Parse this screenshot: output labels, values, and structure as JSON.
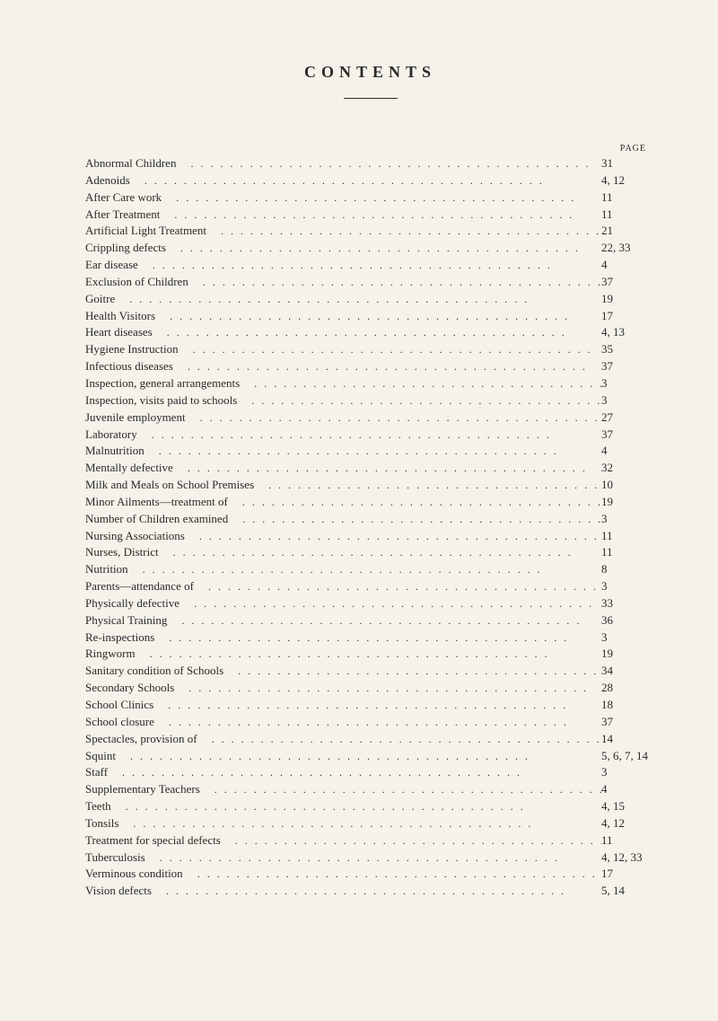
{
  "header": {
    "title": "CONTENTS",
    "page_label": "PAGE"
  },
  "entries": [
    {
      "label": "Abnormal Children",
      "page": "31"
    },
    {
      "label": "Adenoids",
      "page": "4, 12"
    },
    {
      "label": "After Care work",
      "page": "11"
    },
    {
      "label": "After Treatment",
      "page": "11"
    },
    {
      "label": "Artificial Light Treatment",
      "page": "21"
    },
    {
      "label": "Crippling defects",
      "page": "22, 33"
    },
    {
      "label": "Ear disease",
      "page": "4"
    },
    {
      "label": "Exclusion of Children",
      "page": "37"
    },
    {
      "label": "Goitre",
      "page": "19"
    },
    {
      "label": "Health Visitors",
      "page": "17"
    },
    {
      "label": "Heart diseases",
      "page": "4, 13"
    },
    {
      "label": "Hygiene Instruction",
      "page": "35"
    },
    {
      "label": "Infectious diseases",
      "page": "37"
    },
    {
      "label": "Inspection, general arrangements",
      "page": "3"
    },
    {
      "label": "Inspection, visits paid to schools",
      "page": "3"
    },
    {
      "label": "Juvenile employment",
      "page": "27"
    },
    {
      "label": "Laboratory",
      "page": "37"
    },
    {
      "label": "Malnutrition",
      "page": "4"
    },
    {
      "label": "Mentally defective",
      "page": "32"
    },
    {
      "label": "Milk and Meals on School Premises",
      "page": "10"
    },
    {
      "label": "Minor Ailments—treatment of",
      "page": "19"
    },
    {
      "label": "Number of Children examined",
      "page": "3"
    },
    {
      "label": "Nursing Associations",
      "page": "11"
    },
    {
      "label": "Nurses, District",
      "page": "11"
    },
    {
      "label": "Nutrition",
      "page": "8"
    },
    {
      "label": "Parents—attendance of",
      "page": "3"
    },
    {
      "label": "Physically defective",
      "page": "33"
    },
    {
      "label": "Physical Training",
      "page": "36"
    },
    {
      "label": "Re-inspections",
      "page": "3"
    },
    {
      "label": "Ringworm",
      "page": "19"
    },
    {
      "label": "Sanitary condition of Schools",
      "page": "34"
    },
    {
      "label": "Secondary Schools",
      "page": "28"
    },
    {
      "label": "School Clinics",
      "page": "18"
    },
    {
      "label": "School closure",
      "page": "37"
    },
    {
      "label": "Spectacles, provision of",
      "page": "14"
    },
    {
      "label": "Squint",
      "page": "5, 6, 7, 14"
    },
    {
      "label": "Staff",
      "page": "3"
    },
    {
      "label": "Supplementary Teachers",
      "page": "4"
    },
    {
      "label": "Teeth",
      "page": "4, 15"
    },
    {
      "label": "Tonsils",
      "page": "4, 12"
    },
    {
      "label": "Treatment for special defects",
      "page": "11"
    },
    {
      "label": "Tuberculosis",
      "page": "4, 12, 33"
    },
    {
      "label": "Verminous condition",
      "page": "17"
    },
    {
      "label": "Vision defects",
      "page": "5, 14"
    }
  ]
}
